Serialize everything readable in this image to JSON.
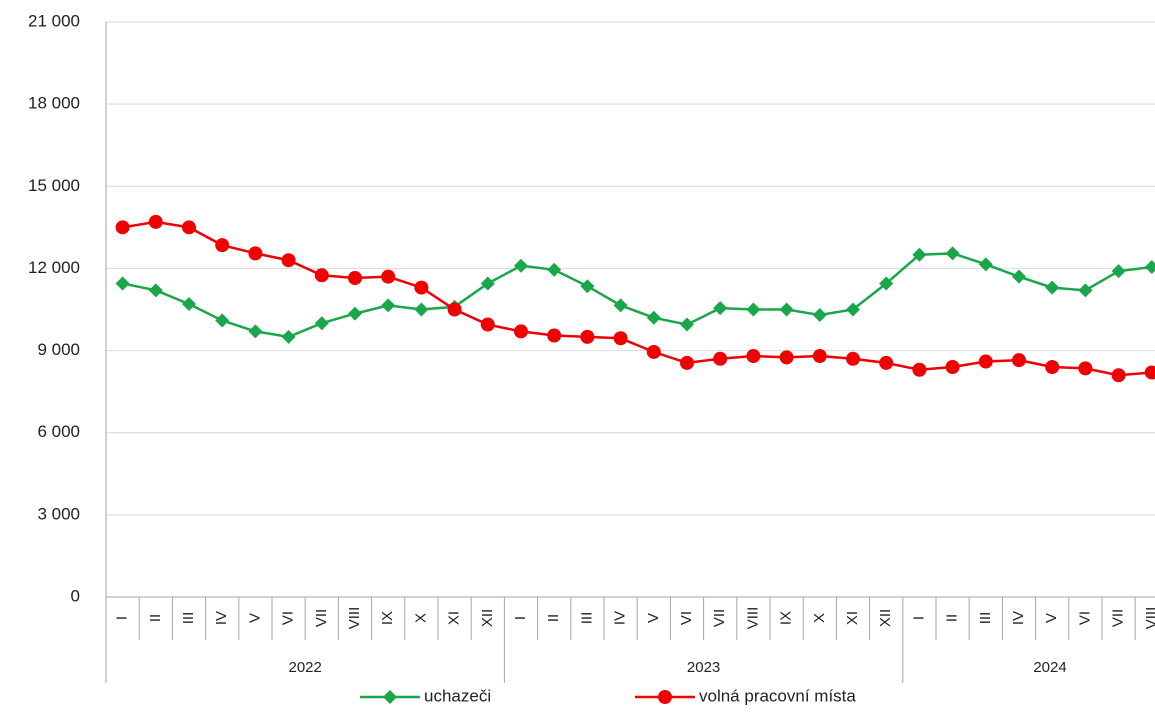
{
  "chart_data": {
    "type": "line",
    "categories": [
      "I",
      "II",
      "III",
      "IV",
      "V",
      "VI",
      "VII",
      "VIII",
      "IX",
      "X",
      "XI",
      "XII",
      "I",
      "II",
      "III",
      "IV",
      "V",
      "VI",
      "VII",
      "VIII",
      "IX",
      "X",
      "XI",
      "XII",
      "I",
      "II",
      "III",
      "IV",
      "V",
      "VI",
      "VII",
      "VIII"
    ],
    "year_labels": [
      "2022",
      "2023",
      "2024"
    ],
    "series": [
      {
        "name": "uchazeči",
        "color": "#1aa64a",
        "marker": "diamond",
        "values": [
          11450,
          11200,
          10700,
          10100,
          9700,
          9500,
          10000,
          10350,
          10650,
          10500,
          10600,
          11450,
          12100,
          11950,
          11350,
          10650,
          10200,
          9950,
          10550,
          10500,
          10500,
          10300,
          10500,
          11450,
          12500,
          12550,
          12150,
          11700,
          11300,
          11200,
          11900,
          12050
        ]
      },
      {
        "name": "volná pracovní místa",
        "color": "#f00000",
        "marker": "circle",
        "values": [
          13500,
          13700,
          13500,
          12850,
          12550,
          12300,
          11750,
          11650,
          11700,
          11300,
          10500,
          9950,
          9700,
          9550,
          9500,
          9450,
          8950,
          8550,
          8700,
          8800,
          8750,
          8800,
          8700,
          8550,
          8300,
          8400,
          8600,
          8650,
          8400,
          8350,
          8100,
          8200
        ]
      }
    ],
    "ylim": [
      0,
      21000
    ],
    "yticks": [
      {
        "value": 0,
        "label": "0"
      },
      {
        "value": 3000,
        "label": "3 000"
      },
      {
        "value": 6000,
        "label": "6 000"
      },
      {
        "value": 9000,
        "label": "9 000"
      },
      {
        "value": 12000,
        "label": "12 000"
      },
      {
        "value": 15000,
        "label": "15 000"
      },
      {
        "value": 18000,
        "label": "18 000"
      },
      {
        "value": 21000,
        "label": "21 000"
      }
    ],
    "grid": true,
    "legend": "bottom"
  }
}
